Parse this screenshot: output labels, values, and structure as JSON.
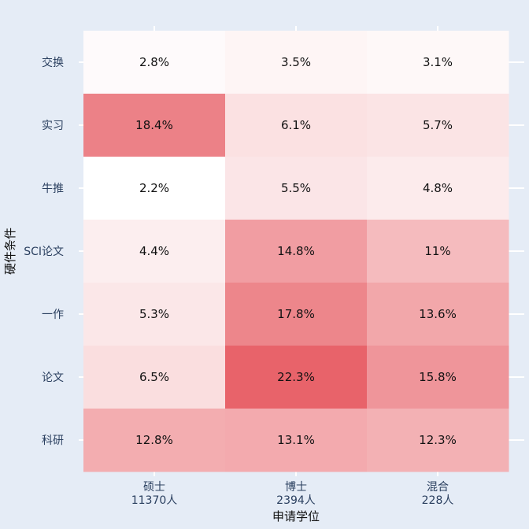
{
  "chart_data": {
    "type": "heatmap",
    "xlabel": "申请学位",
    "ylabel": "硬件条件",
    "x_categories": [
      {
        "line1": "硕士",
        "line2": "11370人"
      },
      {
        "line1": "博士",
        "line2": "2394人"
      },
      {
        "line1": "混合",
        "line2": "228人"
      }
    ],
    "y_categories": [
      "交换",
      "实习",
      "牛推",
      "SCI论文",
      "一作",
      "论文",
      "科研"
    ],
    "values": [
      [
        2.8,
        3.5,
        3.1
      ],
      [
        18.4,
        6.1,
        5.7
      ],
      [
        2.2,
        5.5,
        4.8
      ],
      [
        4.4,
        14.8,
        11
      ],
      [
        5.3,
        17.8,
        13.6
      ],
      [
        6.5,
        22.3,
        15.8
      ],
      [
        12.8,
        13.1,
        12.3
      ]
    ],
    "value_suffix": "%",
    "colorscale": [
      "#ffffff",
      "#e8636a"
    ],
    "grid": true
  }
}
